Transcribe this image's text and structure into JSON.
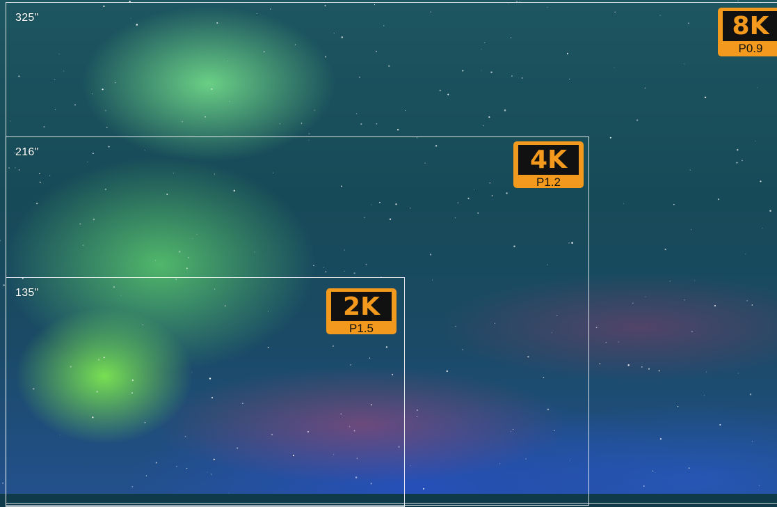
{
  "screens": [
    {
      "id": "8k",
      "size": "325\"",
      "resolution": "8K",
      "pitch": "P0.9"
    },
    {
      "id": "4k",
      "size": "216\"",
      "resolution": "4K",
      "pitch": "P1.2"
    },
    {
      "id": "2k",
      "size": "135\"",
      "resolution": "2K",
      "pitch": "P1.5"
    }
  ],
  "colors": {
    "badge_bg": "#f39a1e",
    "badge_res_bg": "#111111",
    "outline": "#ffffff"
  }
}
